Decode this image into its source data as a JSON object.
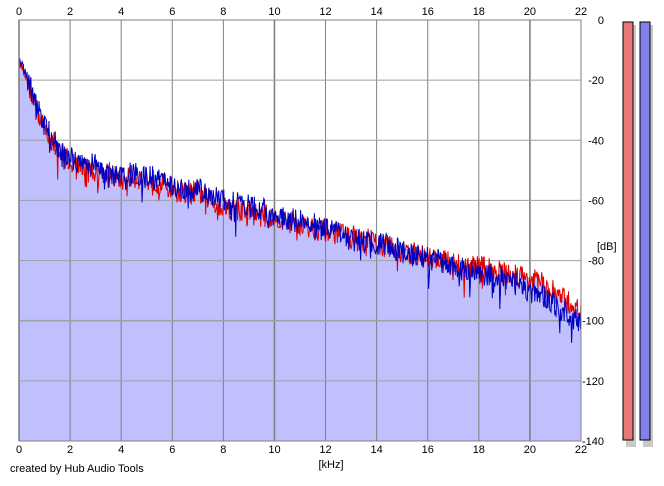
{
  "chart_data": {
    "type": "area",
    "xlabel": "[kHz]",
    "ylabel": "[dB]",
    "xlim": [
      0,
      22
    ],
    "ylim": [
      -140,
      0
    ],
    "x_ticks": [
      0,
      2,
      4,
      6,
      8,
      10,
      12,
      14,
      16,
      18,
      20,
      22
    ],
    "y_ticks": [
      0,
      -20,
      -40,
      -60,
      -80,
      -100,
      -120,
      -140
    ],
    "grid": true,
    "series": [
      {
        "color": "#e00000",
        "x": [
          0,
          0.15,
          0.4,
          0.7,
          1.0,
          1.5,
          2.0,
          2.5,
          3.0,
          3.5,
          4.0,
          4.5,
          5.0,
          5.5,
          6.0,
          6.5,
          7.0,
          7.5,
          8.0,
          8.5,
          9.0,
          9.5,
          10.0,
          10.5,
          11.0,
          11.5,
          12.0,
          12.5,
          13.0,
          13.5,
          14.0,
          14.5,
          15.0,
          15.5,
          16.0,
          16.5,
          17.0,
          17.5,
          18.0,
          18.5,
          19.0,
          19.5,
          20.0,
          20.5,
          21.0,
          21.5,
          22.0
        ],
        "values": [
          -14,
          -16,
          -22,
          -30,
          -36,
          -43,
          -47,
          -49,
          -50,
          -51,
          -53,
          -52,
          -53,
          -54,
          -56,
          -58,
          -57,
          -60,
          -62,
          -63,
          -64,
          -65,
          -66,
          -67,
          -68,
          -69,
          -70,
          -71,
          -72,
          -73,
          -74,
          -76,
          -77,
          -78,
          -79,
          -80,
          -81,
          -82,
          -82,
          -83,
          -84,
          -85,
          -86,
          -88,
          -91,
          -94,
          -97
        ]
      },
      {
        "color": "#0000c0",
        "x": [
          0,
          0.15,
          0.4,
          0.7,
          1.0,
          1.5,
          2.0,
          2.5,
          3.0,
          3.5,
          4.0,
          4.5,
          5.0,
          5.5,
          6.0,
          6.5,
          7.0,
          7.5,
          8.0,
          8.5,
          9.0,
          9.5,
          10.0,
          10.5,
          11.0,
          11.5,
          12.0,
          12.5,
          13.0,
          13.5,
          14.0,
          14.5,
          15.0,
          15.5,
          16.0,
          16.5,
          17.0,
          17.5,
          18.0,
          18.5,
          19.0,
          19.5,
          20.0,
          20.5,
          21.0,
          21.5,
          22.0
        ],
        "values": [
          -12,
          -15,
          -21,
          -29,
          -35,
          -42,
          -46,
          -48,
          -48,
          -50,
          -52,
          -51,
          -52,
          -53,
          -55,
          -57,
          -56,
          -59,
          -60,
          -61,
          -62,
          -63,
          -65,
          -66,
          -67,
          -68,
          -70,
          -71,
          -72,
          -73,
          -74,
          -75,
          -77,
          -78,
          -79,
          -80,
          -82,
          -83,
          -84,
          -85,
          -86,
          -88,
          -90,
          -92,
          -95,
          -98,
          -101
        ]
      }
    ]
  },
  "level_meters": [
    {
      "color": "#e87878"
    },
    {
      "color": "#8080e8"
    }
  ],
  "colors": {
    "fill": "#c0c0ff",
    "grid": "#a0a0a0",
    "grid_major": "#808080"
  },
  "credit": "created by Hub Audio Tools"
}
